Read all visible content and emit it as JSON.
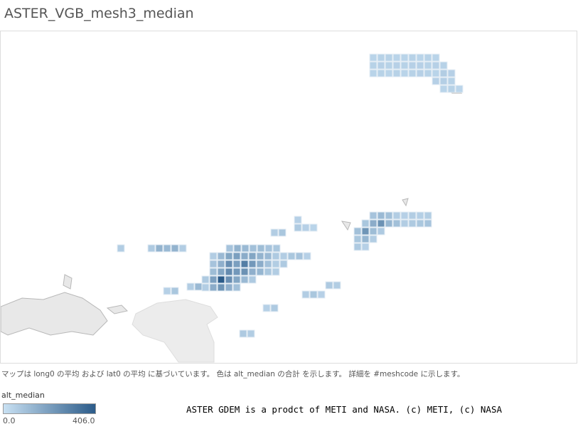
{
  "title": "ASTER_VGB_mesh3_median",
  "caption": "マップは long0 の平均 および lat0 の平均 に基づいています。 色は alt_median の合計 を示します。 詳細を #meshcode に示します。",
  "legend": {
    "title": "alt_median",
    "min": {
      "value": 0,
      "label": "0.0"
    },
    "max": {
      "value": 406,
      "label": "406.0"
    },
    "low_color": "#c9e1f3",
    "high_color": "#2b5b89"
  },
  "attribution": "ASTER GDEM is a prodct of METI and NASA. (c) METI, (c) NASA",
  "cells": [
    [
      40,
      45,
      45,
      40,
      40,
      45,
      40,
      45,
      40
    ],
    [
      45,
      50,
      45,
      50,
      45,
      50,
      50,
      45,
      50,
      45
    ],
    [
      40,
      45,
      40,
      45,
      40,
      45,
      50,
      45,
      40,
      60,
      50
    ],
    [
      50,
      55,
      45
    ],
    [
      40,
      45,
      35
    ],
    [
      60
    ],
    [
      70,
      140,
      120,
      140,
      60
    ],
    [
      50,
      80
    ],
    [
      60,
      120,
      100
    ],
    [
      90,
      140,
      120,
      100,
      110,
      90,
      80
    ],
    [
      60,
      120,
      180,
      200,
      160,
      180,
      140,
      120,
      70,
      60,
      80,
      90,
      50
    ],
    [
      90,
      150,
      250,
      200,
      300,
      220,
      160,
      100,
      60,
      70
    ],
    [
      110,
      180,
      260,
      220,
      240,
      150,
      130,
      80,
      60
    ],
    [
      70,
      200,
      406,
      250,
      180,
      120,
      70
    ],
    [
      60,
      160,
      230,
      150,
      100
    ],
    [
      60,
      80
    ],
    [
      50
    ],
    [
      70,
      50,
      40
    ],
    [
      90,
      120,
      100,
      60
    ],
    [
      50,
      60,
      55,
      60
    ],
    [
      80,
      160,
      240,
      130,
      100,
      60,
      70,
      80,
      90
    ],
    [
      100,
      230,
      110,
      70
    ],
    [
      80,
      130,
      60
    ],
    [
      70,
      50
    ],
    [
      60,
      80,
      50
    ],
    [
      70,
      60
    ],
    [
      50,
      70
    ],
    [
      70,
      60
    ]
  ]
}
